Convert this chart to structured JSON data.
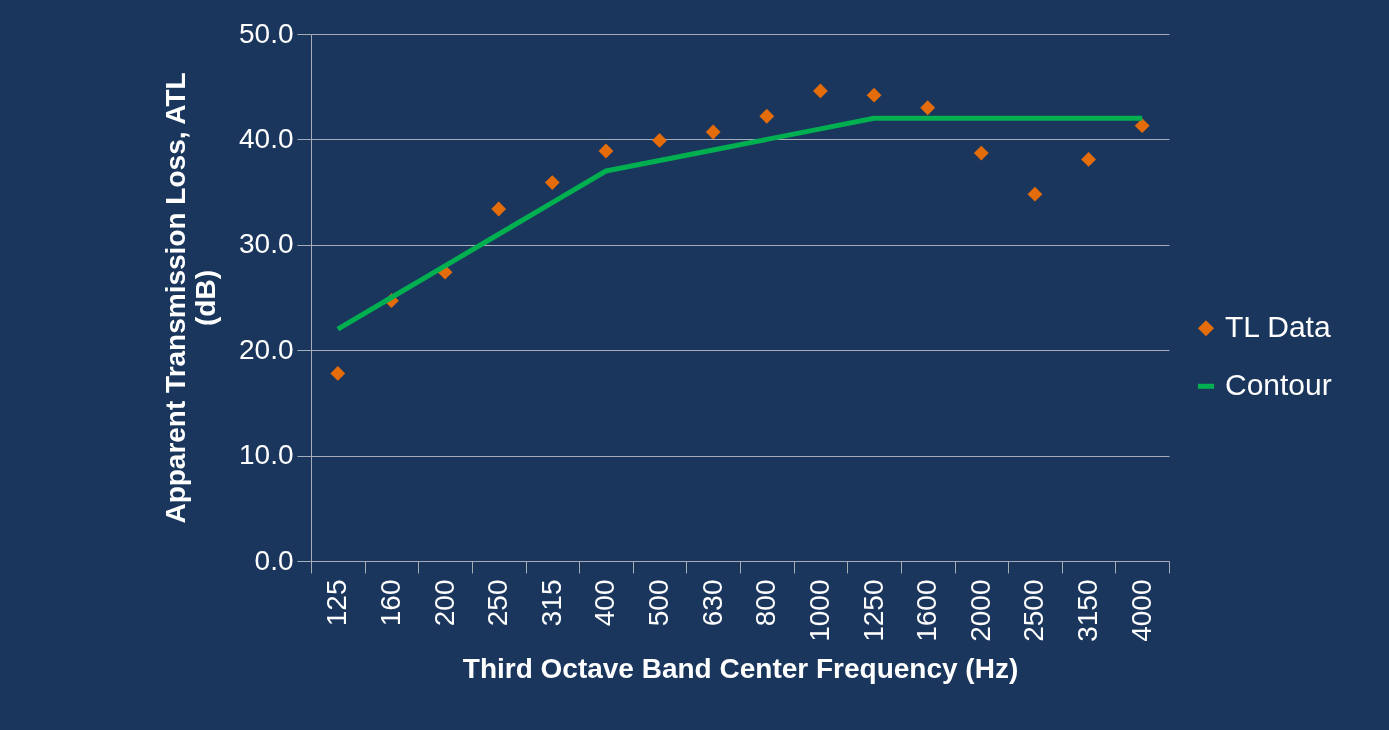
{
  "chart_data": {
    "type": "scatter",
    "xlabel": "Third Octave Band Center Frequency (Hz)",
    "ylabel": "Apparent Transmission Loss, ATL (dB)",
    "categories": [
      "125",
      "160",
      "200",
      "250",
      "315",
      "400",
      "500",
      "630",
      "800",
      "1000",
      "1250",
      "1600",
      "2000",
      "2500",
      "3150",
      "4000"
    ],
    "series": [
      {
        "name": "TL Data",
        "marker": "diamond",
        "color": "#e46c0a",
        "values": [
          17.8,
          24.7,
          27.4,
          33.4,
          35.9,
          38.9,
          39.9,
          40.7,
          42.2,
          44.6,
          44.2,
          43.0,
          38.7,
          34.8,
          38.1,
          41.3
        ]
      },
      {
        "name": "Contour",
        "type": "line",
        "color": "#00b050",
        "values": [
          22,
          25,
          28,
          31,
          34,
          37,
          38,
          39,
          40,
          41,
          42,
          42,
          42,
          42,
          42,
          42
        ]
      }
    ],
    "ylim": [
      0,
      50
    ],
    "yticks": [
      {
        "value": 0,
        "label": "0.0"
      },
      {
        "value": 10,
        "label": "10.0"
      },
      {
        "value": 20,
        "label": "20.0"
      },
      {
        "value": 30,
        "label": "30.0"
      },
      {
        "value": 40,
        "label": "40.0"
      },
      {
        "value": 50,
        "label": "50.0"
      }
    ],
    "grid": "y",
    "legend": "right",
    "line_style": "solid"
  }
}
